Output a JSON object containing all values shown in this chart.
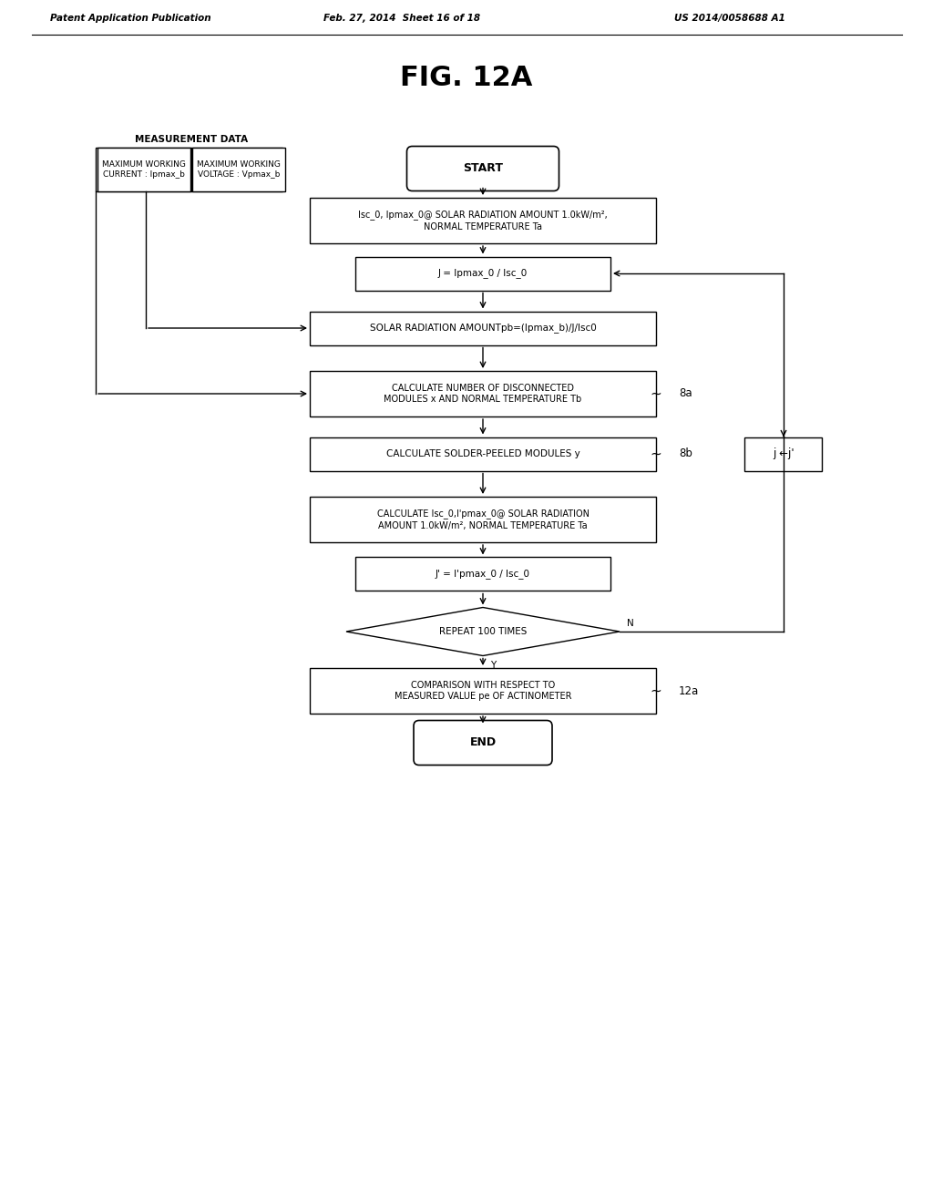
{
  "bg_color": "#ffffff",
  "title_text": "FIG. 12A",
  "header_left": "Patent Application Publication",
  "header_mid": "Feb. 27, 2014  Sheet 16 of 18",
  "header_right": "US 2014/0058688 A1",
  "measurement_label": "MEASUREMENT DATA",
  "box1_left": "MAXIMUM WORKING\nCURRENT : Ipmax_b",
  "box1_right": "MAXIMUM WORKING\nVOLTAGE : Vpmax_b",
  "start_text": "START",
  "step1_text": "Isc_0, Ipmax_0@ SOLAR RADIATION AMOUNT 1.0kW/m²,\nNORMAL TEMPERATURE Ta",
  "step2_text": "J = Ipmax_0 / Isc_0",
  "step3_text": "SOLAR RADIATION AMOUNTpb=(Ipmax_b)/J/Isc0",
  "step4_text": "CALCULATE NUMBER OF DISCONNECTED\nMODULES x AND NORMAL TEMPERATURE Tb",
  "step5_text": "CALCULATE SOLDER-PEELED MODULES y",
  "step6_text": "CALCULATE Isc_0,I'pmax_0@ SOLAR RADIATION\nAMOUNT 1.0kW/m², NORMAL TEMPERATURE Ta",
  "step7_text": "J' = I'pmax_0 / Isc_0",
  "diamond_text": "REPEAT 100 TIMES",
  "step8_text": "COMPARISON WITH RESPECT TO\nMEASURED VALUE pe OF ACTINOMETER",
  "end_text": "END",
  "label_8a": "8a",
  "label_8b": "8b",
  "label_12a": "12a",
  "label_j": "j ←j'",
  "label_N": "N",
  "label_Y": "Y"
}
